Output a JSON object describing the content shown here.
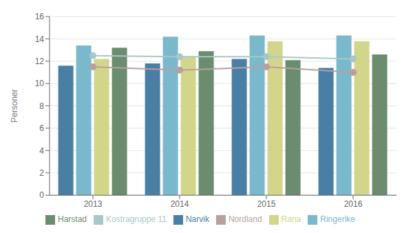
{
  "chart_data": {
    "type": "bar",
    "ylabel": "Personer",
    "categories": [
      "2013",
      "2014",
      "2015",
      "2016"
    ],
    "series": [
      {
        "name": "Narvik",
        "type": "bar",
        "color": "#4a7fa5",
        "values": [
          11.6,
          11.8,
          12.2,
          11.4
        ]
      },
      {
        "name": "Ringerike",
        "type": "bar",
        "color": "#7ab8cc",
        "values": [
          13.4,
          14.2,
          14.3,
          14.3
        ]
      },
      {
        "name": "Rana",
        "type": "bar",
        "color": "#d2d68a",
        "values": [
          12.2,
          12.4,
          13.8,
          13.8
        ]
      },
      {
        "name": "Harstad",
        "type": "bar",
        "color": "#6b8c6e",
        "values": [
          13.2,
          12.9,
          12.1,
          12.6
        ]
      },
      {
        "name": "Nordland",
        "type": "line",
        "color": "#b8a0a0",
        "marker": "o",
        "values": [
          11.5,
          11.2,
          11.5,
          11.0
        ]
      },
      {
        "name": "Kostragruppe 11",
        "type": "line",
        "color": "#a8c8c8",
        "marker": "o",
        "values": [
          12.5,
          12.4,
          12.4,
          12.2
        ]
      }
    ],
    "ylim": [
      0,
      16
    ],
    "yticks": [
      0,
      2,
      4,
      6,
      8,
      10,
      12,
      14,
      16
    ],
    "grid": true,
    "legend": "bottom"
  }
}
